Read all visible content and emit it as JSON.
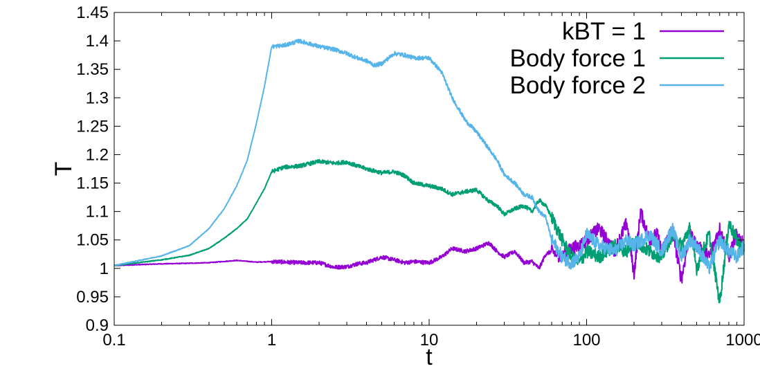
{
  "chart_data": {
    "type": "line",
    "xlabel": "t",
    "ylabel": "T",
    "x_scale": "log",
    "xlim": [
      0.1,
      1000
    ],
    "ylim": [
      0.9,
      1.45
    ],
    "x_ticks": [
      0.1,
      1,
      10,
      100,
      1000
    ],
    "x_tick_labels": [
      "0.1",
      "1",
      "10",
      "100",
      "1000"
    ],
    "y_ticks": [
      0.9,
      0.95,
      1.0,
      1.05,
      1.1,
      1.15,
      1.2,
      1.25,
      1.3,
      1.35,
      1.4,
      1.45
    ],
    "y_tick_labels": [
      "0.9",
      "0.95",
      "1",
      "1.05",
      "1.1",
      "1.15",
      "1.2",
      "1.25",
      "1.3",
      "1.35",
      "1.4",
      "1.45"
    ],
    "grid": false,
    "legend_position": "top-right",
    "series": [
      {
        "name": "kBT = 1",
        "color": "#9400d3",
        "x": [
          0.1,
          0.2,
          0.3,
          0.4,
          0.6,
          0.8,
          1.0,
          1.5,
          2.0,
          2.5,
          3.0,
          3.5,
          4.0,
          5.0,
          6.0,
          7.0,
          8.0,
          10,
          12,
          14,
          17,
          20,
          24,
          27,
          30,
          35,
          40,
          45,
          50,
          55,
          60,
          70,
          80,
          90,
          100,
          120,
          150,
          180,
          200,
          220,
          250,
          280,
          300,
          350,
          400,
          450,
          500,
          600,
          700,
          800,
          900,
          1000
        ],
        "y": [
          1.005,
          1.008,
          1.009,
          1.01,
          1.014,
          1.011,
          1.012,
          1.01,
          1.01,
          1.002,
          1.003,
          1.008,
          1.01,
          1.02,
          1.015,
          1.01,
          1.012,
          1.01,
          1.02,
          1.035,
          1.03,
          1.035,
          1.045,
          1.03,
          1.02,
          1.03,
          1.01,
          1.012,
          1.0,
          1.025,
          1.03,
          1.02,
          1.035,
          1.04,
          1.05,
          1.07,
          1.03,
          1.08,
          0.99,
          1.1,
          1.05,
          1.06,
          1.03,
          1.07,
          0.98,
          1.06,
          1.04,
          1.02,
          1.07,
          1.02,
          1.06,
          1.04
        ]
      },
      {
        "name": "Body force 1",
        "color": "#009e73",
        "x": [
          0.1,
          0.2,
          0.3,
          0.4,
          0.5,
          0.6,
          0.7,
          0.8,
          0.9,
          1.0,
          1.2,
          1.5,
          2.0,
          2.5,
          3.0,
          3.5,
          4.0,
          5.0,
          6.0,
          7.0,
          8.0,
          10,
          12,
          14,
          17,
          20,
          24,
          27,
          30,
          35,
          40,
          45,
          50,
          55,
          60,
          70,
          80,
          90,
          100,
          120,
          150,
          180,
          200,
          250,
          300,
          350,
          400,
          450,
          500,
          600,
          700,
          800,
          900,
          1000
        ],
        "y": [
          1.005,
          1.015,
          1.023,
          1.035,
          1.053,
          1.07,
          1.087,
          1.115,
          1.14,
          1.17,
          1.178,
          1.18,
          1.188,
          1.185,
          1.187,
          1.18,
          1.175,
          1.168,
          1.17,
          1.163,
          1.15,
          1.145,
          1.14,
          1.13,
          1.135,
          1.138,
          1.118,
          1.11,
          1.095,
          1.105,
          1.11,
          1.1,
          1.12,
          1.11,
          1.09,
          1.05,
          1.02,
          1.01,
          1.03,
          1.02,
          1.04,
          1.03,
          1.05,
          1.03,
          1.02,
          1.06,
          1.04,
          1.07,
          1.0,
          1.06,
          0.94,
          1.08,
          1.05,
          1.03
        ]
      },
      {
        "name": "Body force 2",
        "color": "#56b4e9",
        "x": [
          0.1,
          0.2,
          0.3,
          0.4,
          0.5,
          0.6,
          0.7,
          0.8,
          0.9,
          1.0,
          1.2,
          1.5,
          2.0,
          2.5,
          3.0,
          3.5,
          4.0,
          4.5,
          5.0,
          6.0,
          7.0,
          8.0,
          10,
          12,
          14,
          17,
          20,
          24,
          27,
          30,
          35,
          40,
          45,
          50,
          55,
          60,
          70,
          80,
          90,
          100,
          120,
          150,
          180,
          200,
          250,
          300,
          350,
          400,
          450,
          500,
          600,
          700,
          800,
          900,
          1000
        ],
        "y": [
          1.005,
          1.022,
          1.04,
          1.07,
          1.105,
          1.145,
          1.19,
          1.255,
          1.32,
          1.39,
          1.392,
          1.4,
          1.39,
          1.385,
          1.378,
          1.37,
          1.365,
          1.357,
          1.36,
          1.378,
          1.375,
          1.37,
          1.37,
          1.345,
          1.3,
          1.26,
          1.24,
          1.21,
          1.19,
          1.165,
          1.15,
          1.13,
          1.125,
          1.1,
          1.09,
          1.05,
          1.02,
          1.01,
          1.02,
          1.06,
          1.04,
          1.03,
          1.05,
          1.04,
          1.06,
          1.03,
          1.07,
          1.02,
          1.05,
          1.04,
          1.0,
          1.05,
          1.03,
          1.02,
          1.04
        ]
      }
    ]
  }
}
